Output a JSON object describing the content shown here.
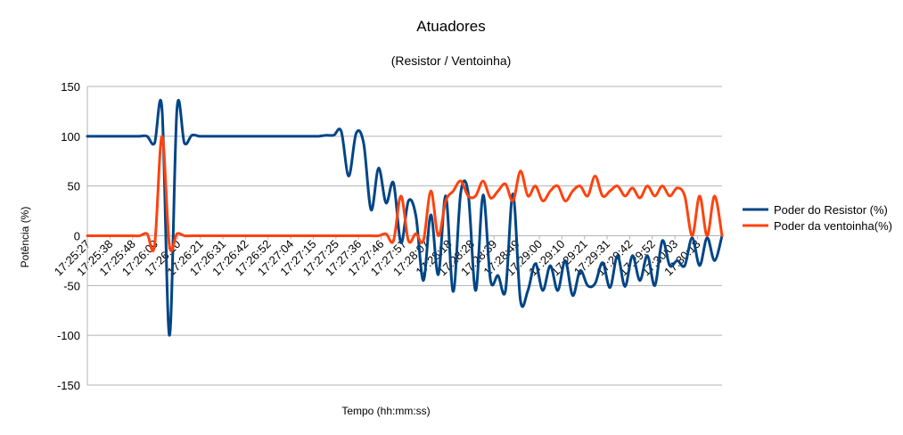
{
  "chart_data": {
    "type": "line",
    "title": "Atuadores",
    "subtitle": "(Resistor / Ventoinha)",
    "xlabel": "Tempo (hh:mm:ss)",
    "ylabel": "Potência (%)",
    "ylim": [
      -150,
      150
    ],
    "yticks": [
      150,
      100,
      50,
      0,
      -50,
      -100,
      -150
    ],
    "grid": true,
    "legend_position": "right",
    "x_tick_labels": [
      "17:25:27",
      "17:25:38",
      "17:25:48",
      "17:26:00",
      "17:26:10",
      "17:26:21",
      "17:26:31",
      "17:26:42",
      "17:26:52",
      "17:27:04",
      "17:27:15",
      "17:27:25",
      "17:27:36",
      "17:27:46",
      "17:27:57",
      "17:28:07",
      "17:28:18",
      "17:28:28",
      "17:28:39",
      "17:28:49",
      "17:29:00",
      "17:29:10",
      "17:29:21",
      "17:29:31",
      "17:29:42",
      "17:29:52",
      "17:30:03",
      "17:30:13"
    ],
    "series": [
      {
        "name": "Poder do Resistor (%)",
        "color": "#004586",
        "values": [
          100,
          100,
          100,
          100,
          100,
          100,
          100,
          100,
          100,
          93,
          127,
          -100,
          127,
          93,
          101,
          100,
          100,
          100,
          100,
          100,
          100,
          100,
          100,
          100,
          100,
          100,
          100,
          100,
          100,
          100,
          100,
          100,
          101,
          101,
          105,
          60,
          103,
          93,
          26,
          68,
          33,
          53,
          -7,
          35,
          20,
          -45,
          21,
          -39,
          40,
          -56,
          43,
          43,
          -55,
          41,
          -45,
          -40,
          -55,
          42,
          -65,
          -55,
          -28,
          -55,
          -30,
          -55,
          -25,
          -60,
          -35,
          -50,
          -48,
          -27,
          -52,
          -20,
          -51,
          -20,
          -45,
          -20,
          -50,
          -5,
          -30,
          -25,
          -30,
          -2,
          -30,
          -2,
          -25,
          0
        ],
        "show_label": true
      },
      {
        "name": "Poder da ventoinha(%)",
        "color": "#ff420e",
        "values": [
          0,
          0,
          0,
          0,
          0,
          0,
          0,
          0,
          2,
          -10,
          100,
          -10,
          2,
          0,
          0,
          0,
          0,
          0,
          0,
          0,
          0,
          0,
          0,
          0,
          0,
          0,
          0,
          0,
          0,
          0,
          0,
          0,
          0,
          0,
          0,
          0,
          0,
          0,
          0,
          0,
          2,
          -5,
          40,
          -5,
          2,
          -5,
          45,
          0,
          35,
          45,
          55,
          40,
          40,
          55,
          38,
          45,
          52,
          35,
          65,
          40,
          50,
          35,
          45,
          50,
          35,
          45,
          50,
          40,
          60,
          40,
          45,
          50,
          40,
          48,
          38,
          50,
          40,
          50,
          40,
          48,
          40,
          0,
          40,
          0,
          40,
          0
        ],
        "show_label": true
      }
    ]
  }
}
